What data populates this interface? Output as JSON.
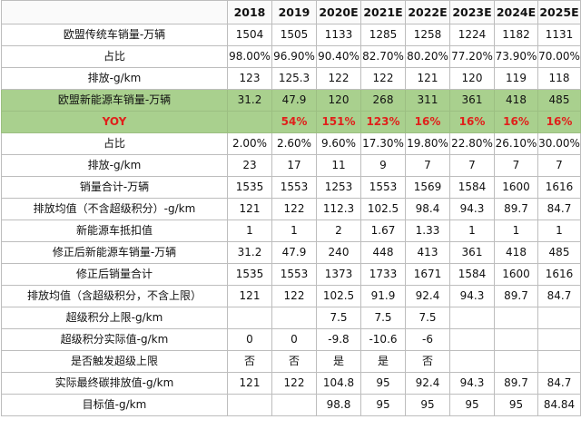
{
  "header": [
    "",
    "2018",
    "2019",
    "2020E",
    "2021E",
    "2022E",
    "2023E",
    "2024E",
    "2025E"
  ],
  "rows": [
    {
      "label": "欧盟传统车销量-万辆",
      "cells": [
        "1504",
        "1505",
        "1133",
        "1285",
        "1258",
        "1224",
        "1182",
        "1131"
      ]
    },
    {
      "label": "占比",
      "cells": [
        "98.00%",
        "96.90%",
        "90.40%",
        "82.70%",
        "80.20%",
        "77.20%",
        "73.90%",
        "70.00%"
      ]
    },
    {
      "label": "排放-g/km",
      "cells": [
        "123",
        "125.3",
        "122",
        "122",
        "121",
        "120",
        "119",
        "118"
      ]
    },
    {
      "label": "欧盟新能源车销量-万辆",
      "cells": [
        "31.2",
        "47.9",
        "120",
        "268",
        "311",
        "361",
        "418",
        "485"
      ],
      "highlight": "green"
    },
    {
      "label": "YOY",
      "cells": [
        "",
        "54%",
        "151%",
        "123%",
        "16%",
        "16%",
        "16%",
        "16%"
      ],
      "highlight": "green",
      "text_color": "#e0201b"
    },
    {
      "label": "占比",
      "cells": [
        "2.00%",
        "2.60%",
        "9.60%",
        "17.30%",
        "19.80%",
        "22.80%",
        "26.10%",
        "30.00%"
      ]
    },
    {
      "label": "排放-g/km",
      "cells": [
        "23",
        "17",
        "11",
        "9",
        "7",
        "7",
        "7",
        "7"
      ]
    },
    {
      "label": "销量合计-万辆",
      "cells": [
        "1535",
        "1553",
        "1253",
        "1553",
        "1569",
        "1584",
        "1600",
        "1616"
      ]
    },
    {
      "label": "排放均值（不含超级积分）-g/km",
      "cells": [
        "121",
        "122",
        "112.3",
        "102.5",
        "98.4",
        "94.3",
        "89.7",
        "84.7"
      ]
    },
    {
      "label": "新能源车抵扣值",
      "cells": [
        "1",
        "1",
        "2",
        "1.67",
        "1.33",
        "1",
        "1",
        "1"
      ]
    },
    {
      "label": "修正后新能源车销量-万辆",
      "cells": [
        "31.2",
        "47.9",
        "240",
        "448",
        "413",
        "361",
        "418",
        "485"
      ]
    },
    {
      "label": "修正后销量合计",
      "cells": [
        "1535",
        "1553",
        "1373",
        "1733",
        "1671",
        "1584",
        "1600",
        "1616"
      ]
    },
    {
      "label": "排放均值（含超级积分，不含上限）",
      "cells": [
        "121",
        "122",
        "102.5",
        "91.9",
        "92.4",
        "94.3",
        "89.7",
        "84.7"
      ]
    },
    {
      "label": "超级积分上限-g/km",
      "cells": [
        "",
        "",
        "7.5",
        "7.5",
        "7.5",
        "",
        "",
        ""
      ]
    },
    {
      "label": "超级积分实际值-g/km",
      "cells": [
        "0",
        "0",
        "-9.8",
        "-10.6",
        "-6",
        "",
        "",
        ""
      ]
    },
    {
      "label": "是否触发超级上限",
      "cells": [
        "否",
        "否",
        "是",
        "是",
        "否",
        "",
        "",
        ""
      ]
    },
    {
      "label": "实际最终碳排放值-g/km",
      "cells": [
        "121",
        "122",
        "104.8",
        "95",
        "92.4",
        "94.3",
        "89.7",
        "84.7"
      ]
    },
    {
      "label": "目标值-g/km",
      "cells": [
        "",
        "",
        "98.8",
        "95",
        "95",
        "95",
        "95",
        "84.84"
      ]
    }
  ],
  "colors": {
    "highlight_green": "#a9d08e",
    "yoy_red": "#e0201b",
    "border": "#bdbdbd"
  }
}
